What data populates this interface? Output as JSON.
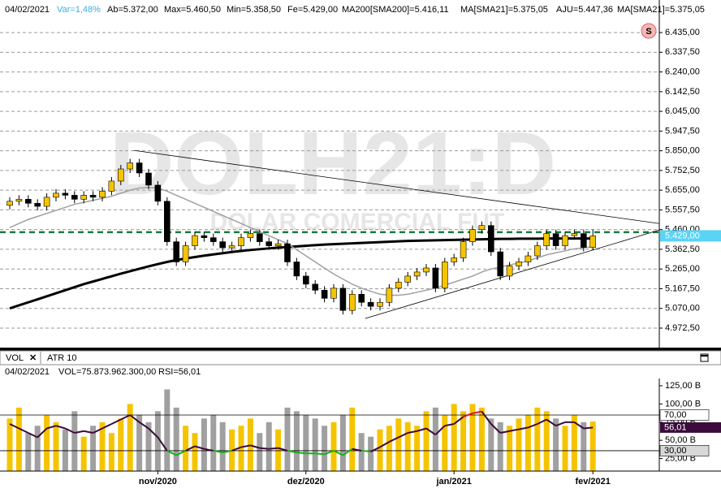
{
  "header": {
    "date": "04/02/2021",
    "var": "Var=1,48%",
    "ab": "Ab=5.372,00",
    "max": "Max=5.460,50",
    "min": "Min=5.358,50",
    "fe": "Fe=5.429,00",
    "ma200": "MA200[SMA200]=5.416,11",
    "ma21": "MA[SMA21]=5.375,05",
    "aju": "AJU=5.447,36",
    "ma21b": "MA[SMA21]=5.375,05"
  },
  "chart_data": [
    {
      "type": "candlestick",
      "watermark": "DOLH21:D",
      "watermark_sub": "DOLAR COMERCIAL FUT",
      "categories": [
        null,
        null,
        null,
        null,
        null,
        null,
        null,
        null,
        null,
        null,
        null,
        null,
        null,
        null,
        null,
        null,
        "nov/2020",
        null,
        null,
        null,
        null,
        null,
        null,
        null,
        null,
        null,
        null,
        null,
        null,
        null,
        null,
        null,
        "dez/2020",
        null,
        null,
        null,
        null,
        null,
        null,
        null,
        null,
        null,
        null,
        null,
        null,
        null,
        null,
        null,
        "jan/2021",
        null,
        null,
        null,
        null,
        null,
        null,
        null,
        null,
        null,
        null,
        null,
        null,
        null,
        null,
        "fev/2021"
      ],
      "open": [
        5580,
        5600,
        5610,
        5590,
        5575,
        5620,
        5640,
        5630,
        5610,
        5630,
        5620,
        5650,
        5700,
        5760,
        5790,
        5740,
        5680,
        5600,
        5400,
        5300,
        5380,
        5430,
        5420,
        5400,
        5370,
        5380,
        5420,
        5440,
        5400,
        5380,
        5390,
        5300,
        5230,
        5190,
        5160,
        5120,
        5170,
        5060,
        5140,
        5100,
        5080,
        5100,
        5170,
        5200,
        5230,
        5250,
        5270,
        5170,
        5300,
        5320,
        5400,
        5460,
        5480,
        5350,
        5230,
        5280,
        5300,
        5330,
        5380,
        5440,
        5380,
        5430,
        5440,
        5372
      ],
      "high": [
        5620,
        5630,
        5630,
        5610,
        5640,
        5660,
        5660,
        5650,
        5650,
        5650,
        5670,
        5720,
        5780,
        5810,
        5810,
        5760,
        5700,
        5620,
        5420,
        5400,
        5450,
        5450,
        5440,
        5420,
        5400,
        5440,
        5460,
        5460,
        5420,
        5410,
        5410,
        5320,
        5250,
        5210,
        5180,
        5190,
        5190,
        5160,
        5160,
        5120,
        5120,
        5190,
        5220,
        5250,
        5270,
        5290,
        5290,
        5320,
        5340,
        5420,
        5480,
        5500,
        5500,
        5370,
        5300,
        5320,
        5350,
        5400,
        5460,
        5460,
        5450,
        5460,
        5460,
        5460.5
      ],
      "low": [
        5560,
        5580,
        5570,
        5555,
        5555,
        5600,
        5610,
        5590,
        5590,
        5600,
        5600,
        5630,
        5680,
        5740,
        5720,
        5660,
        5580,
        5380,
        5280,
        5280,
        5360,
        5400,
        5380,
        5350,
        5350,
        5360,
        5400,
        5380,
        5360,
        5360,
        5280,
        5210,
        5170,
        5140,
        5100,
        5100,
        5040,
        5040,
        5080,
        5060,
        5060,
        5080,
        5150,
        5180,
        5210,
        5230,
        5150,
        5150,
        5280,
        5300,
        5380,
        5440,
        5330,
        5210,
        5210,
        5260,
        5280,
        5310,
        5360,
        5360,
        5360,
        5410,
        5352,
        5358.5
      ],
      "close": [
        5600,
        5610,
        5590,
        5575,
        5620,
        5640,
        5630,
        5610,
        5630,
        5620,
        5650,
        5700,
        5760,
        5790,
        5740,
        5680,
        5600,
        5400,
        5300,
        5380,
        5430,
        5420,
        5400,
        5370,
        5380,
        5420,
        5440,
        5400,
        5380,
        5390,
        5300,
        5230,
        5190,
        5160,
        5120,
        5170,
        5060,
        5140,
        5100,
        5080,
        5100,
        5170,
        5200,
        5230,
        5250,
        5270,
        5170,
        5300,
        5320,
        5400,
        5460,
        5480,
        5350,
        5230,
        5280,
        5300,
        5330,
        5380,
        5440,
        5380,
        5430,
        5440,
        5372,
        5429
      ],
      "close_label": "5.429,00",
      "up_color": "#f5c400",
      "down_color": "#000000",
      "series": [
        {
          "name": "MA200[SMA200]",
          "color": "#000000",
          "values": [
            5070,
            5085,
            5100,
            5115,
            5130,
            5145,
            5160,
            5175,
            5190,
            5203,
            5216,
            5229,
            5242,
            5254,
            5266,
            5278,
            5289,
            5300,
            5309,
            5317,
            5324,
            5331,
            5337,
            5343,
            5349,
            5354,
            5359,
            5363,
            5367,
            5371,
            5374,
            5377,
            5380,
            5383,
            5386,
            5388,
            5390,
            5392,
            5394,
            5396,
            5398,
            5400,
            5402,
            5404,
            5405,
            5406,
            5407,
            5408,
            5409,
            5410,
            5411,
            5412,
            5413,
            5414,
            5414,
            5415,
            5415,
            5415,
            5416,
            5416,
            5416,
            5416,
            5416,
            5416.11
          ]
        },
        {
          "name": "MA[SMA21]",
          "color": "#a0a0a0",
          "values": [
            5470,
            5490,
            5510,
            5525,
            5540,
            5555,
            5570,
            5585,
            5595,
            5605,
            5615,
            5625,
            5640,
            5655,
            5665,
            5668,
            5665,
            5650,
            5630,
            5610,
            5590,
            5570,
            5550,
            5530,
            5510,
            5490,
            5470,
            5450,
            5430,
            5410,
            5390,
            5360,
            5330,
            5300,
            5270,
            5240,
            5215,
            5190,
            5170,
            5155,
            5140,
            5135,
            5135,
            5140,
            5150,
            5160,
            5170,
            5185,
            5200,
            5215,
            5230,
            5250,
            5265,
            5275,
            5285,
            5295,
            5305,
            5320,
            5335,
            5345,
            5355,
            5365,
            5370,
            5375.05
          ]
        }
      ],
      "aju_line": 5447.36,
      "aju_color": "#1a7a3a",
      "trendlines": [
        {
          "x": [
            13.4,
            70.2
          ],
          "y": [
            5852,
            5490
          ]
        },
        {
          "x": [
            38.4,
            70.2
          ],
          "y": [
            5020,
            5458
          ]
        }
      ],
      "ylim": [
        4884,
        6588
      ],
      "yticks": [
        {
          "value": 6435,
          "label": "6.435,00"
        },
        {
          "value": 6337.5,
          "label": "6.337,50"
        },
        {
          "value": 6240,
          "label": "6.240,00"
        },
        {
          "value": 6142.5,
          "label": "6.142,50"
        },
        {
          "value": 6045,
          "label": "6.045,00"
        },
        {
          "value": 5947.5,
          "label": "5.947,50"
        },
        {
          "value": 5850,
          "label": "5.850,00"
        },
        {
          "value": 5752.5,
          "label": "5.752,50"
        },
        {
          "value": 5655,
          "label": "5.655,00"
        },
        {
          "value": 5557.5,
          "label": "5.557,50"
        },
        {
          "value": 5460,
          "label": "5.460,00"
        },
        {
          "value": 5362.5,
          "label": "5.362,50"
        },
        {
          "value": 5265,
          "label": "5.265,00"
        },
        {
          "value": 5167.5,
          "label": "5.167,50"
        },
        {
          "value": 5070,
          "label": "5.070,00"
        },
        {
          "value": 4972.5,
          "label": "4.972,50"
        }
      ],
      "grid": true
    },
    {
      "type": "bar",
      "tabs": [
        "VOL",
        "ATR 10"
      ],
      "info": {
        "date": "04/02/2021",
        "vol": "VOL=75.873.962.300,00",
        "rsi": "RSI=56,01"
      },
      "values": [
        80,
        95,
        60,
        70,
        85,
        75,
        65,
        90,
        55,
        70,
        75,
        60,
        80,
        100,
        85,
        75,
        90,
        120,
        95,
        70,
        60,
        80,
        85,
        75,
        65,
        70,
        80,
        60,
        75,
        65,
        95,
        90,
        85,
        80,
        70,
        75,
        85,
        95,
        60,
        55,
        65,
        70,
        80,
        75,
        70,
        90,
        95,
        85,
        100,
        90,
        100,
        95,
        80,
        75,
        70,
        80,
        85,
        95,
        90,
        80,
        70,
        85,
        75,
        75.87
      ],
      "up_color": "#f5c400",
      "down_color": "#a0a0a0",
      "ylim": [
        10,
        135
      ],
      "yticks": [
        {
          "value": 125,
          "label": "125,00 B"
        },
        {
          "value": 100,
          "label": "100,00 B"
        },
        {
          "value": 75,
          "label": "75,00 B"
        },
        {
          "value": 50,
          "label": "50,00 B"
        },
        {
          "value": 25,
          "label": "25,00 B"
        }
      ],
      "rsi": {
        "name": "RSI",
        "color": "#3c0a3c",
        "high_color": "#e0102a",
        "low_color": "#18b018",
        "values": [
          60,
          55,
          50,
          45,
          55,
          58,
          55,
          50,
          52,
          50,
          55,
          60,
          65,
          70,
          62,
          55,
          45,
          30,
          25,
          30,
          35,
          32,
          30,
          28,
          30,
          34,
          36,
          33,
          32,
          33,
          30,
          28,
          27,
          27,
          26,
          30,
          25,
          32,
          30,
          29,
          34,
          40,
          45,
          50,
          52,
          55,
          48,
          58,
          60,
          68,
          72,
          74,
          60,
          50,
          52,
          54,
          56,
          60,
          65,
          58,
          62,
          62,
          55,
          56.01
        ],
        "last_label": "56,01",
        "ylim": [
          9,
          111
        ],
        "yticks": [
          {
            "value": 70,
            "label": "70,00"
          },
          {
            "value": 30,
            "label": "30,00"
          }
        ]
      }
    }
  ]
}
